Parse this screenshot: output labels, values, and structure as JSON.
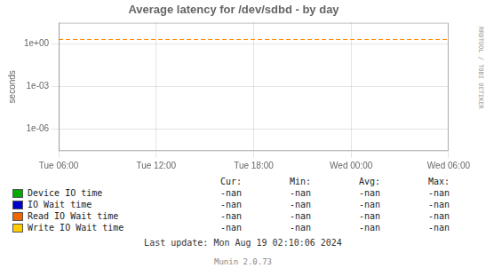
{
  "chart_data": {
    "type": "line",
    "title": "Average latency for /dev/sdbd - by day",
    "y_label": "seconds",
    "categories": [
      "Tue 06:00",
      "Tue 12:00",
      "Tue 18:00",
      "Wed 00:00",
      "Wed 06:00"
    ],
    "series": [
      {
        "name": "Device IO time",
        "color": "#00aa00",
        "values": [
          null,
          null,
          null,
          null,
          null
        ],
        "stats": [
          "-nan",
          "-nan",
          "-nan",
          "-nan"
        ]
      },
      {
        "name": "IO Wait time",
        "color": "#0000cc",
        "values": [
          null,
          null,
          null,
          null,
          null
        ],
        "stats": [
          "-nan",
          "-nan",
          "-nan",
          "-nan"
        ]
      },
      {
        "name": "Read IO Wait time",
        "color": "#ee6600",
        "values": [
          null,
          null,
          null,
          null,
          null
        ],
        "stats": [
          "-nan",
          "-nan",
          "-nan",
          "-nan"
        ]
      },
      {
        "name": "Write IO Wait time",
        "color": "#ffcc00",
        "values": [
          null,
          null,
          null,
          null,
          null
        ],
        "stats": [
          "-nan",
          "-nan",
          "-nan",
          "-nan"
        ]
      }
    ],
    "stats_header": [
      "Cur:",
      "Min:",
      "Avg:",
      "Max:"
    ],
    "reference_line": {
      "value": 2.0,
      "color": "#ff8800",
      "line_style": "dashed"
    },
    "log": "y",
    "ylim": [
      3e-08,
      30.0
    ],
    "yticks": [
      {
        "value": 1e-06,
        "label": "1e-06"
      },
      {
        "value": 0.001,
        "label": "1e-03"
      },
      {
        "value": 1.0,
        "label": "1e+00"
      }
    ],
    "grid": true,
    "annotations": [
      "Last update: Mon Aug 19 02:10:06 2024",
      "Munin 2.0.73",
      "RRDTOOL / TOBI OETIKER"
    ]
  }
}
